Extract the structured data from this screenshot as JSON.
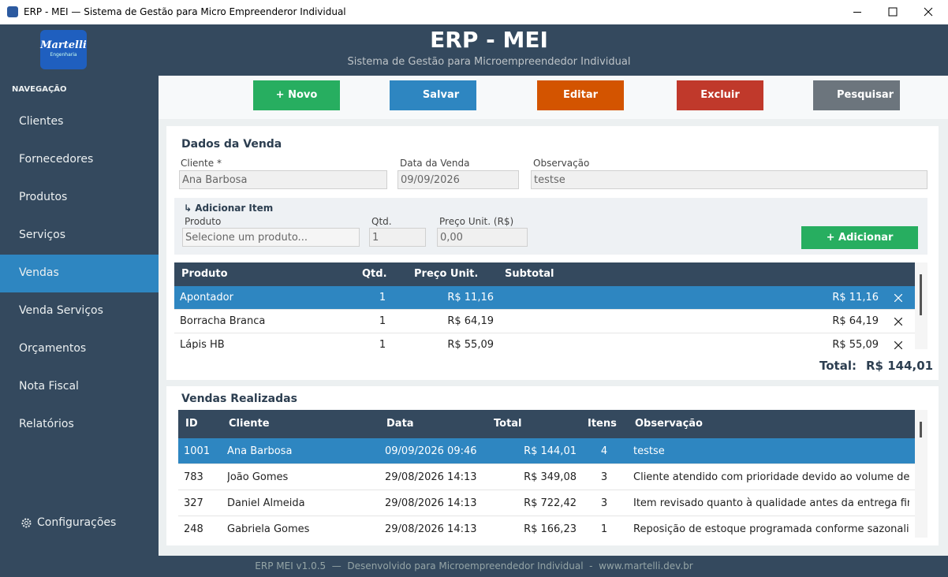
{
  "window": {
    "title": "ERP - MEI — Sistema de Gestão para Micro Empreenderor Individual"
  },
  "header": {
    "logo": "Martelli",
    "logo_sub": "Engenharia",
    "title": "ERP - MEI",
    "subtitle": "Sistema de Gestão para Microempreendedor Individual"
  },
  "sidebar": {
    "heading": "NAVEGAÇÃO",
    "items": [
      "Clientes",
      "Fornecedores",
      "Produtos",
      "Serviços",
      "Vendas",
      "Venda Serviços",
      "Orçamentos",
      "Nota Fiscal",
      "Relatórios"
    ],
    "active": 4,
    "settings": "Configurações"
  },
  "toolbar": {
    "buttons": [
      "+ Novo",
      "Salvar",
      "Editar",
      "Excluir",
      "Pesquisar"
    ]
  },
  "sale_form": {
    "title": "Dados da Venda",
    "client_label": "Cliente *",
    "client": "Ana Barbosa",
    "date_label": "Data da Venda",
    "date": "09/09/2026",
    "note_label": "Observação",
    "note": "testse"
  },
  "add_item": {
    "title": "↳ Adicionar Item",
    "product_label": "Produto",
    "product": "Selecione um produto...",
    "qty_label": "Qtd.",
    "qty": "1",
    "price_label": "Preço Unit. (R$)",
    "price": "0,00",
    "button": "+ Adicionar"
  },
  "items_table": {
    "headers": [
      "Produto",
      "Qtd.",
      "Preço Unit.",
      "Subtotal"
    ],
    "rows": [
      [
        "Apontador",
        "1",
        "R$ 11,16",
        "R$ 11,16"
      ],
      [
        "Borracha Branca",
        "1",
        "R$ 64,19",
        "R$ 64,19"
      ],
      [
        "Lápis HB",
        "1",
        "R$ 55,09",
        "R$ 55,09"
      ]
    ],
    "total_label": "Total:",
    "total": "R$ 144,01"
  },
  "sales": {
    "title": "Vendas Realizadas",
    "headers": [
      "ID",
      "Cliente",
      "Data",
      "Total",
      "Itens",
      "Observação"
    ],
    "rows": [
      [
        "1001",
        "Ana Barbosa",
        "09/09/2026 09:46",
        "R$ 144,01",
        "4",
        "testse"
      ],
      [
        "783",
        "João Gomes",
        "29/08/2026 14:13",
        "R$ 349,08",
        "3",
        "Cliente atendido com prioridade devido ao volume de co..."
      ],
      [
        "327",
        "Daniel Almeida",
        "29/08/2026 14:13",
        "R$ 722,42",
        "3",
        "Item revisado quanto à qualidade antes da entrega final. ..."
      ],
      [
        "248",
        "Gabriela Gomes",
        "29/08/2026 14:13",
        "R$ 166,23",
        "1",
        "Reposição de estoque programada conforme sazonalida..."
      ]
    ]
  },
  "footer": {
    "text": "ERP MEI v1.0.5  —  Desenvolvido para Microempreendedor Individual  -  www.martelli.dev.br"
  }
}
